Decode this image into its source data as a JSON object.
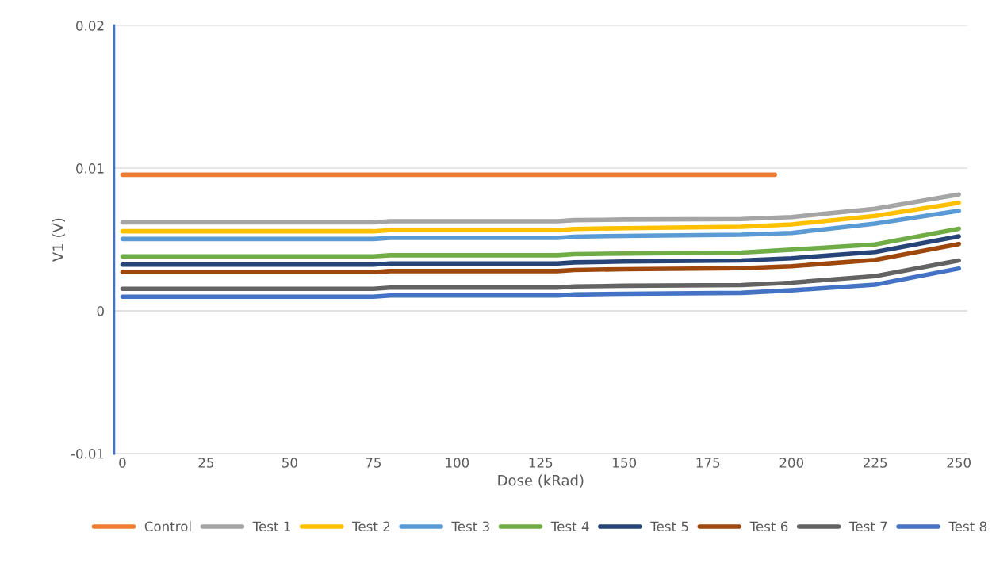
{
  "chart_data": {
    "type": "line",
    "xlabel": "Dose (kRad)",
    "ylabel": "V1 (V)",
    "xlim": [
      -2.5,
      252.5
    ],
    "xticks": [
      0,
      25,
      50,
      75,
      100,
      125,
      150,
      175,
      200,
      225,
      250
    ],
    "ylim": [
      -0.01,
      0.02
    ],
    "yticks": [
      -0.01,
      0,
      0.01,
      0.02
    ],
    "grid": "y",
    "legend": "bottom",
    "marker": "none",
    "line_style": "solid",
    "x": [
      0,
      75,
      80,
      130,
      135,
      150,
      185,
      200,
      225,
      250
    ],
    "series": [
      {
        "name": "Control",
        "color": "#ed7d31",
        "x": [
          0,
          195
        ],
        "values": [
          0.00954,
          0.00954
        ]
      },
      {
        "name": "Test 1",
        "color": "#a5a5a5",
        "values": [
          0.0062,
          0.0062,
          0.00628,
          0.00628,
          0.00636,
          0.0064,
          0.00644,
          0.00658,
          0.00716,
          0.00816
        ]
      },
      {
        "name": "Test 2",
        "color": "#ffc000",
        "values": [
          0.00558,
          0.00558,
          0.00566,
          0.00566,
          0.00574,
          0.0058,
          0.00589,
          0.00606,
          0.00666,
          0.00757
        ]
      },
      {
        "name": "Test 3",
        "color": "#5b9bd5",
        "values": [
          0.00504,
          0.00504,
          0.00512,
          0.00512,
          0.0052,
          0.00526,
          0.00534,
          0.00546,
          0.00612,
          0.00702
        ]
      },
      {
        "name": "Test 4",
        "color": "#70ad47",
        "values": [
          0.00382,
          0.00382,
          0.0039,
          0.0039,
          0.00398,
          0.00402,
          0.00409,
          0.00429,
          0.00466,
          0.00576
        ]
      },
      {
        "name": "Test 5",
        "color": "#264478",
        "values": [
          0.00324,
          0.00324,
          0.00332,
          0.00332,
          0.0034,
          0.00346,
          0.00353,
          0.00369,
          0.00413,
          0.00523
        ]
      },
      {
        "name": "Test 6",
        "color": "#9e480e",
        "values": [
          0.00271,
          0.00271,
          0.00279,
          0.00279,
          0.00287,
          0.00292,
          0.00299,
          0.00313,
          0.00357,
          0.00469
        ]
      },
      {
        "name": "Test 7",
        "color": "#636363",
        "values": [
          0.00155,
          0.00155,
          0.00163,
          0.00163,
          0.00171,
          0.00176,
          0.00181,
          0.00198,
          0.00243,
          0.00353
        ]
      },
      {
        "name": "Test 8",
        "color": "#4472c4",
        "values": [
          0.00099,
          0.00099,
          0.00107,
          0.00107,
          0.00115,
          0.0012,
          0.00126,
          0.00144,
          0.00184,
          0.00297
        ]
      }
    ]
  }
}
